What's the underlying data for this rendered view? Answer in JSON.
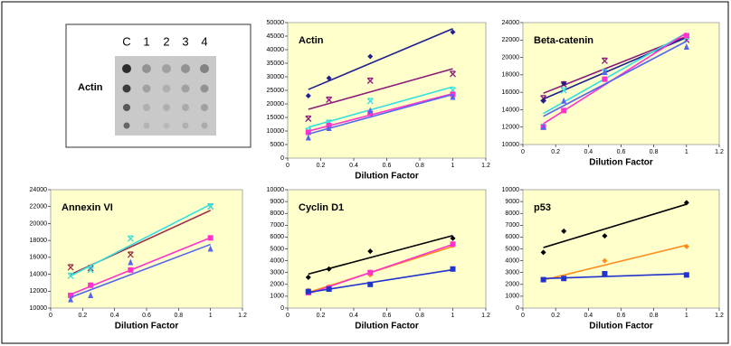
{
  "blot": {
    "columns": [
      "C",
      "1",
      "2",
      "3",
      "4"
    ],
    "label": "Actin"
  },
  "chart_data": [
    {
      "type": "scatter",
      "title": "Actin",
      "x_label": "Dilution Factor",
      "x": [
        0.125,
        0.25,
        0.5,
        1
      ],
      "xlim": [
        0,
        1.2
      ],
      "xticks": [
        0,
        0.2,
        0.4,
        0.6,
        0.8,
        1,
        1.2
      ],
      "ylim": [
        0,
        50000
      ],
      "yticks": [
        0,
        5000,
        10000,
        15000,
        20000,
        25000,
        30000,
        35000,
        40000,
        45000,
        50000
      ],
      "trendline": true,
      "series": [
        {
          "color": "#1f1f8f",
          "marker": "diamond",
          "values": [
            23000,
            29500,
            37500,
            46500
          ]
        },
        {
          "color": "#8b1a7a",
          "marker": "x",
          "values": [
            14500,
            21500,
            28500,
            31000
          ]
        },
        {
          "color": "#33e0e0",
          "marker": "x",
          "values": [
            10000,
            13000,
            21000,
            25000
          ]
        },
        {
          "color": "#ff33cc",
          "marker": "square",
          "values": [
            9500,
            12000,
            16500,
            23500
          ]
        },
        {
          "color": "#5566ee",
          "marker": "triangle",
          "values": [
            7500,
            11000,
            17500,
            22500
          ]
        }
      ]
    },
    {
      "type": "scatter",
      "title": "Beta-catenin",
      "x_label": "Dilution Factor",
      "x": [
        0.125,
        0.25,
        0.5,
        1
      ],
      "xlim": [
        0,
        1.2
      ],
      "xticks": [
        0,
        0.2,
        0.4,
        0.6,
        0.8,
        1,
        1.2
      ],
      "ylim": [
        10000,
        24000
      ],
      "yticks": [
        10000,
        12000,
        14000,
        16000,
        18000,
        20000,
        22000,
        24000
      ],
      "trendline": true,
      "series": [
        {
          "color": "#8b1a7a",
          "marker": "x",
          "values": [
            15300,
            16900,
            19600,
            22000
          ]
        },
        {
          "color": "#1f1f8f",
          "marker": "diamond",
          "values": [
            15000,
            17000,
            17500,
            22500
          ]
        },
        {
          "color": "#33e0e0",
          "marker": "x",
          "values": [
            12000,
            16200,
            18300,
            22300
          ]
        },
        {
          "color": "#ff33cc",
          "marker": "square",
          "values": [
            12000,
            13900,
            17500,
            22500
          ]
        },
        {
          "color": "#5566ee",
          "marker": "triangle",
          "values": [
            12000,
            15000,
            18300,
            21200
          ]
        }
      ]
    },
    {
      "type": "scatter",
      "title": "Annexin VI",
      "x_label": "Dilution Factor",
      "x": [
        0.125,
        0.25,
        0.5,
        1
      ],
      "xlim": [
        0,
        1.2
      ],
      "xticks": [
        0,
        0.2,
        0.4,
        0.6,
        0.8,
        1,
        1.2
      ],
      "ylim": [
        10000,
        24000
      ],
      "yticks": [
        10000,
        12000,
        14000,
        16000,
        18000,
        20000,
        22000,
        24000
      ],
      "trendline": true,
      "series": [
        {
          "color": "#a0304a",
          "marker": "x",
          "values": [
            14800,
            14700,
            16300,
            22000
          ]
        },
        {
          "color": "#33e0e0",
          "marker": "x",
          "values": [
            13800,
            14500,
            18200,
            22000
          ]
        },
        {
          "color": "#ff33cc",
          "marker": "square",
          "values": [
            11500,
            12700,
            14500,
            18300
          ]
        },
        {
          "color": "#5566ee",
          "marker": "triangle",
          "values": [
            11000,
            11500,
            15400,
            17000
          ]
        }
      ]
    },
    {
      "type": "scatter",
      "title": "Cyclin D1",
      "x_label": "Dilution Factor",
      "x": [
        0.125,
        0.25,
        0.5,
        1
      ],
      "xlim": [
        0,
        1.2
      ],
      "xticks": [
        0,
        0.2,
        0.4,
        0.6,
        0.8,
        1,
        1.2
      ],
      "ylim": [
        0,
        10000
      ],
      "yticks": [
        0,
        1000,
        2000,
        3000,
        4000,
        5000,
        6000,
        7000,
        8000,
        9000,
        10000
      ],
      "trendline": true,
      "series": [
        {
          "color": "#000000",
          "marker": "diamond",
          "values": [
            2600,
            3300,
            4800,
            5900
          ]
        },
        {
          "color": "#ff8c1a",
          "marker": "diamond",
          "values": [
            1500,
            1800,
            2800,
            5300
          ]
        },
        {
          "color": "#ff33cc",
          "marker": "square",
          "values": [
            1300,
            1700,
            3000,
            5400
          ]
        },
        {
          "color": "#2233cc",
          "marker": "square",
          "values": [
            1400,
            1600,
            2000,
            3300
          ]
        }
      ]
    },
    {
      "type": "scatter",
      "title": "p53",
      "x_label": "Dilution Factor",
      "x": [
        0.125,
        0.25,
        0.5,
        1
      ],
      "xlim": [
        0,
        1.2
      ],
      "xticks": [
        0,
        0.2,
        0.4,
        0.6,
        0.8,
        1,
        1.2
      ],
      "ylim": [
        0,
        10000
      ],
      "yticks": [
        0,
        1000,
        2000,
        3000,
        4000,
        5000,
        6000,
        7000,
        8000,
        9000,
        10000
      ],
      "trendline": true,
      "series": [
        {
          "color": "#000000",
          "marker": "diamond",
          "values": [
            4700,
            6500,
            6100,
            8900
          ]
        },
        {
          "color": "#ff8c1a",
          "marker": "diamond",
          "values": [
            2400,
            2500,
            4000,
            5200
          ]
        },
        {
          "color": "#2233cc",
          "marker": "square",
          "values": [
            2400,
            2500,
            2900,
            2800
          ]
        }
      ]
    }
  ]
}
